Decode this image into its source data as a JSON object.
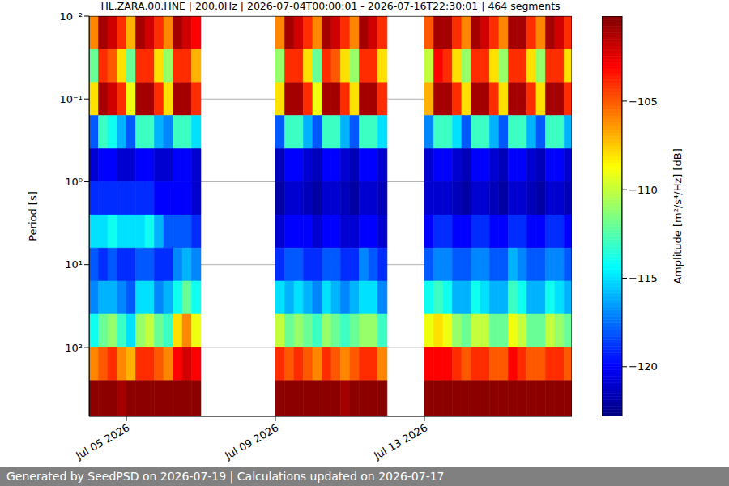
{
  "chart_data": {
    "type": "heatmap",
    "title": "HL.ZARA.00.HNE | 200.0Hz | 2026-07-04T00:00:01 - 2026-07-16T22:30:01 | 464 segments",
    "ylabel": "Period [s]",
    "footer": "Generated by SeedPSD on 2026-07-19 | Calculations updated on 2026-07-17",
    "log": "y",
    "grid": true,
    "xlim": [
      "2026-07-04T00:00",
      "2026-07-16T23:00"
    ],
    "xticks": [
      {
        "value": "2026-07-05T00:00",
        "label": "Jul 05 2026"
      },
      {
        "value": "2026-07-09T00:00",
        "label": "Jul 09 2026"
      },
      {
        "value": "2026-07-13T00:00",
        "label": "Jul 13 2026"
      }
    ],
    "ylim": [
      0.01,
      680
    ],
    "yticks": [
      {
        "value": 0.01,
        "label": "10⁻²"
      },
      {
        "value": 0.1,
        "label": "10⁻¹"
      },
      {
        "value": 1,
        "label": "10⁰"
      },
      {
        "value": 10,
        "label": "10¹"
      },
      {
        "value": 100,
        "label": "10²"
      }
    ],
    "x_edges": [
      "2026-07-04T00:00",
      "2026-07-04T06:00",
      "2026-07-04T12:00",
      "2026-07-04T18:00",
      "2026-07-05T00:00",
      "2026-07-05T06:00",
      "2026-07-05T12:00",
      "2026-07-05T18:00",
      "2026-07-06T00:00",
      "2026-07-06T06:00",
      "2026-07-06T12:00",
      "2026-07-06T18:00",
      "2026-07-07T00:00",
      "2026-07-07T06:00",
      "2026-07-07T12:00",
      "2026-07-07T18:00",
      "2026-07-08T00:00",
      "2026-07-08T06:00",
      "2026-07-08T12:00",
      "2026-07-08T18:00",
      "2026-07-09T00:00",
      "2026-07-09T06:00",
      "2026-07-09T12:00",
      "2026-07-09T18:00",
      "2026-07-10T00:00",
      "2026-07-10T06:00",
      "2026-07-10T12:00",
      "2026-07-10T18:00",
      "2026-07-11T00:00",
      "2026-07-11T06:00",
      "2026-07-11T12:00",
      "2026-07-11T18:00",
      "2026-07-12T00:00",
      "2026-07-12T06:00",
      "2026-07-12T12:00",
      "2026-07-12T18:00",
      "2026-07-13T00:00",
      "2026-07-13T06:00",
      "2026-07-13T12:00",
      "2026-07-13T18:00",
      "2026-07-14T00:00",
      "2026-07-14T06:00",
      "2026-07-14T12:00",
      "2026-07-14T18:00",
      "2026-07-15T00:00",
      "2026-07-15T06:00",
      "2026-07-15T12:00",
      "2026-07-15T18:00",
      "2026-07-16T00:00",
      "2026-07-16T06:00",
      "2026-07-16T12:00",
      "2026-07-16T18:00",
      "2026-07-16T23:00"
    ],
    "y_edges": [
      0.01,
      0.0251,
      0.0631,
      0.158,
      0.398,
      1,
      2.51,
      6.31,
      15.8,
      39.8,
      100,
      251,
      680
    ],
    "cells": [
      [
        -106,
        -112,
        -108,
        -118,
        -121,
        -119,
        -115,
        -118,
        -117,
        -114,
        -106,
        -100.5
      ],
      [
        -101,
        -104,
        -101,
        -113,
        -120,
        -119,
        -115,
        -119,
        -116,
        -112,
        -105,
        -100.5
      ],
      [
        -102,
        -105,
        -102,
        -114,
        -120,
        -119,
        -114,
        -118,
        -116,
        -111,
        -104,
        -100.5
      ],
      [
        -104,
        -108,
        -104,
        -116,
        -121,
        -119,
        -115,
        -119,
        -117,
        -113,
        -106,
        -101
      ],
      [
        -107,
        -112,
        -109,
        -118,
        -121,
        -119,
        -115,
        -119,
        -118,
        -115,
        -107,
        -100.5
      ],
      [
        -101,
        -104,
        -101,
        -113,
        -120,
        -119,
        -115,
        -118,
        -115,
        -111,
        -104,
        -100.5
      ],
      [
        -102,
        -104,
        -101,
        -113,
        -120,
        -119,
        -114,
        -118,
        -115,
        -110,
        -104,
        -100.5
      ],
      [
        -104,
        -108,
        -104,
        -116,
        -121,
        -120,
        -116,
        -119,
        -117,
        -112,
        -105,
        -100.5
      ],
      [
        -106,
        -111,
        -108,
        -117,
        -121,
        -120,
        -118,
        -119,
        -116,
        -113,
        -106,
        -100.5
      ],
      [
        -101,
        -104,
        -101,
        -113,
        -120,
        -120,
        -118,
        -117,
        -114,
        -108,
        -103,
        -100.5
      ],
      [
        -102,
        -104,
        -101,
        -113,
        -120,
        -120,
        -118,
        -116,
        -112,
        -106,
        -102,
        -100.5
      ],
      [
        -103,
        -107,
        -104,
        -115,
        -121,
        -121,
        -119,
        -117,
        -114,
        -109,
        -103,
        -100.5
      ],
      null,
      null,
      null,
      null,
      null,
      null,
      null,
      null,
      [
        -106,
        -111,
        -108,
        -118,
        -121.5,
        -122,
        -121,
        -119,
        -115,
        -110,
        -104,
        -100.5
      ],
      [
        -101,
        -104,
        -101,
        -113,
        -120,
        -121,
        -120,
        -118,
        -116,
        -112,
        -105,
        -100.5
      ],
      [
        -102,
        -104,
        -101,
        -113,
        -120,
        -121,
        -120,
        -118,
        -115,
        -111,
        -104,
        -100.5
      ],
      [
        -104,
        -108,
        -104,
        -116,
        -121,
        -121.5,
        -120,
        -119,
        -116,
        -112,
        -105,
        -100.5
      ],
      [
        -106,
        -112,
        -109,
        -118,
        -121.5,
        -122,
        -121,
        -119,
        -117,
        -113,
        -106,
        -100.5
      ],
      [
        -101,
        -104,
        -101,
        -113,
        -120,
        -121,
        -120,
        -118,
        -115,
        -111,
        -104,
        -100.5
      ],
      [
        -102,
        -105,
        -101,
        -113,
        -120,
        -121,
        -120,
        -118,
        -116,
        -112,
        -105,
        -100.5
      ],
      [
        -104,
        -108,
        -104,
        -116,
        -121,
        -121.5,
        -121,
        -119,
        -117,
        -113,
        -106,
        -101
      ],
      [
        -106,
        -111,
        -108,
        -118,
        -121.5,
        -122,
        -121,
        -119,
        -116,
        -112,
        -105,
        -100.5
      ],
      [
        -101,
        -104,
        -101,
        -113,
        -120,
        -121,
        -120,
        -117,
        -115,
        -111,
        -104,
        -100.5
      ],
      [
        -102,
        -104,
        -101,
        -113,
        -120,
        -121,
        -120,
        -118,
        -115,
        -111,
        -104,
        -100.5
      ],
      [
        -104,
        -108,
        -104,
        -115,
        -121,
        -121.5,
        -121,
        -119,
        -117,
        -113,
        -106,
        -100.5
      ],
      null,
      null,
      null,
      null,
      [
        -105,
        -110,
        -107,
        -117,
        -121,
        -121,
        -120,
        -118,
        -114,
        -109,
        -103,
        -100.5
      ],
      [
        -101,
        -103,
        -101,
        -113,
        -120,
        -121,
        -119,
        -117,
        -113,
        -108,
        -103,
        -100.5
      ],
      [
        -101,
        -104,
        -101,
        -113,
        -120,
        -121,
        -119,
        -117,
        -114,
        -109,
        -103,
        -100.5
      ],
      [
        -104,
        -108,
        -104,
        -115,
        -121,
        -121.5,
        -120,
        -118,
        -116,
        -111,
        -104,
        -100.5
      ],
      [
        -106,
        -111,
        -108,
        -118,
        -121.5,
        -122,
        -120,
        -118,
        -116,
        -112,
        -105,
        -100.5
      ],
      [
        -101,
        -104,
        -101,
        -113,
        -120,
        -121,
        -119,
        -117,
        -114,
        -110,
        -104,
        -100.5
      ],
      [
        -102,
        -104,
        -101,
        -113,
        -120,
        -121,
        -119,
        -117,
        -115,
        -110,
        -104,
        -100.5
      ],
      [
        -104,
        -108,
        -104,
        -116,
        -121,
        -121.5,
        -120,
        -118,
        -116,
        -112,
        -105,
        -100.5
      ],
      [
        -106,
        -111,
        -108,
        -118,
        -121.5,
        -122,
        -120,
        -118,
        -116,
        -112,
        -105,
        -100.5
      ],
      [
        -101,
        -104,
        -101,
        -113,
        -120,
        -121,
        -119,
        -116,
        -113,
        -109,
        -103,
        -100.5
      ],
      [
        -101,
        -104,
        -101,
        -113,
        -120,
        -121,
        -119,
        -117,
        -114,
        -110,
        -104,
        -100.5
      ],
      [
        -104,
        -108,
        -104,
        -116,
        -121,
        -121.5,
        -120,
        -118,
        -116,
        -112,
        -105,
        -100.5
      ],
      [
        -106,
        -111,
        -108,
        -118,
        -121.5,
        -122,
        -120,
        -118,
        -116,
        -112,
        -105,
        -100.5
      ],
      [
        -101,
        -104,
        -101,
        -113,
        -120,
        -121,
        -119,
        -117,
        -114,
        -110,
        -104,
        -100.5
      ],
      [
        -102,
        -104,
        -101,
        -113,
        -120,
        -121,
        -119,
        -117,
        -115,
        -111,
        -104,
        -100.5
      ],
      [
        -104,
        -108,
        -104,
        -116,
        -121,
        -121.5,
        -120,
        -118,
        -116,
        -112,
        -105,
        -100.5
      ]
    ],
    "colorbar": {
      "label": "Amplitude [m²/s⁴/Hz] [dB]",
      "range": [
        -122.8,
        -100.2
      ],
      "ticks": [
        {
          "value": -120,
          "label": "−120"
        },
        {
          "value": -115,
          "label": "−115"
        },
        {
          "value": -110,
          "label": "−110"
        },
        {
          "value": -105,
          "label": "−105"
        }
      ]
    }
  }
}
